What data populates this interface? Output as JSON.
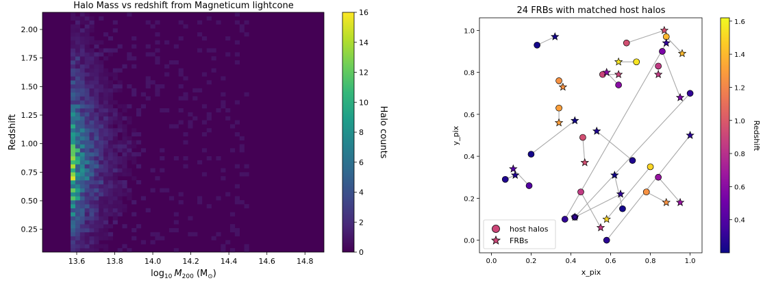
{
  "chart_data": [
    {
      "type": "heatmap",
      "title": "Halo Mass vs redshift from Magneticum lightcone",
      "xlabel_parts": [
        "log",
        "10",
        "M",
        "200",
        " (M",
        "⊙",
        ")"
      ],
      "ylabel": "Redshift",
      "xlim": [
        13.42,
        14.9
      ],
      "ylim": [
        0.05,
        2.15
      ],
      "xticks": [
        "13.6",
        "13.8",
        "14.0",
        "14.2",
        "14.4",
        "14.6",
        "14.8"
      ],
      "yticks": [
        "0.25",
        "0.50",
        "0.75",
        "1.00",
        "1.25",
        "1.50",
        "1.75",
        "2.00"
      ],
      "colorbar": {
        "label": "Halo counts",
        "min": 0,
        "max": 16,
        "ticks": [
          "0",
          "2",
          "4",
          "6",
          "8",
          "10",
          "12",
          "14",
          "16"
        ],
        "colormap": [
          "#440154",
          "#482878",
          "#3e4989",
          "#31688e",
          "#26828e",
          "#1f9e89",
          "#35b779",
          "#6ece58",
          "#b5de2b",
          "#fde725"
        ]
      }
    },
    {
      "type": "scatter",
      "title": "24 FRBs with matched host halos",
      "xlabel": "x_pix",
      "ylabel": "y_pix",
      "xlim": [
        -0.06,
        1.06
      ],
      "ylim": [
        -0.06,
        1.06
      ],
      "xticks": [
        "0.0",
        "0.2",
        "0.4",
        "0.6",
        "0.8",
        "1.0"
      ],
      "yticks": [
        "0.0",
        "0.2",
        "0.4",
        "0.6",
        "0.8",
        "1.0"
      ],
      "legend": {
        "placement": "lower-left",
        "entries": [
          "host halos",
          "FRBs"
        ]
      },
      "link_color": "#a8a8a8",
      "colorbar": {
        "label": "Redshift",
        "min": 0.2,
        "max": 1.62,
        "ticks": [
          "0.4",
          "0.6",
          "0.8",
          "1.0",
          "1.2",
          "1.4",
          "1.6"
        ],
        "colormap": [
          "#0d0887",
          "#46039f",
          "#7201a8",
          "#9c179e",
          "#bd3786",
          "#d8576b",
          "#ed7953",
          "#fb9f3a",
          "#fdca26",
          "#f0f921"
        ]
      },
      "pairs": [
        {
          "halo": [
            0.23,
            0.93
          ],
          "frb": [
            0.32,
            0.97
          ],
          "z": 0.22
        },
        {
          "halo": [
            0.68,
            0.94
          ],
          "frb": [
            0.87,
            1.0
          ],
          "z": 0.95
        },
        {
          "halo": [
            0.88,
            0.97
          ],
          "frb": [
            0.96,
            0.89
          ],
          "z": 1.4
        },
        {
          "halo": [
            0.73,
            0.85
          ],
          "frb": [
            0.64,
            0.85
          ],
          "z": 1.55
        },
        {
          "halo": [
            0.56,
            0.79
          ],
          "frb": [
            0.64,
            0.79
          ],
          "z": 0.9
        },
        {
          "halo": [
            0.64,
            0.74
          ],
          "frb": [
            0.58,
            0.8
          ],
          "z": 0.6
        },
        {
          "halo": [
            0.84,
            0.83
          ],
          "frb": [
            0.84,
            0.79
          ],
          "z": 0.85
        },
        {
          "halo": [
            0.86,
            0.9
          ],
          "frb": [
            0.95,
            0.68
          ],
          "z": 0.55
        },
        {
          "halo": [
            0.34,
            0.76
          ],
          "frb": [
            0.36,
            0.73
          ],
          "z": 1.25
        },
        {
          "halo": [
            0.34,
            0.63
          ],
          "frb": [
            0.34,
            0.56
          ],
          "z": 1.3
        },
        {
          "halo": [
            1.0,
            0.7
          ],
          "frb": [
            0.42,
            0.11
          ],
          "z": 0.3
        },
        {
          "halo": [
            0.2,
            0.41
          ],
          "frb": [
            0.42,
            0.57
          ],
          "z": 0.22
        },
        {
          "halo": [
            0.46,
            0.49
          ],
          "frb": [
            0.47,
            0.37
          ],
          "z": 0.95
        },
        {
          "halo": [
            0.71,
            0.38
          ],
          "frb": [
            0.53,
            0.52
          ],
          "z": 0.25
        },
        {
          "halo": [
            0.07,
            0.29
          ],
          "frb": [
            0.12,
            0.31
          ],
          "z": 0.25
        },
        {
          "halo": [
            0.19,
            0.26
          ],
          "frb": [
            0.11,
            0.34
          ],
          "z": 0.4
        },
        {
          "halo": [
            0.8,
            0.35
          ],
          "frb": [
            0.58,
            0.1
          ],
          "z": 1.5
        },
        {
          "halo": [
            0.45,
            0.23
          ],
          "frb": [
            0.55,
            0.06
          ],
          "z": 0.85
        },
        {
          "halo": [
            0.84,
            0.3
          ],
          "frb": [
            0.95,
            0.18
          ],
          "z": 0.65
        },
        {
          "halo": [
            0.78,
            0.23
          ],
          "frb": [
            0.88,
            0.18
          ],
          "z": 1.25
        },
        {
          "halo": [
            0.66,
            0.15
          ],
          "frb": [
            0.62,
            0.31
          ],
          "z": 0.22
        },
        {
          "halo": [
            0.37,
            0.1
          ],
          "frb": [
            0.88,
            0.94
          ],
          "z": 0.3
        },
        {
          "halo": [
            0.58,
            0.0
          ],
          "frb": [
            1.0,
            0.5
          ],
          "z": 0.28
        },
        {
          "halo": [
            0.42,
            0.11
          ],
          "frb": [
            0.65,
            0.22
          ],
          "z": 0.3
        }
      ]
    }
  ]
}
